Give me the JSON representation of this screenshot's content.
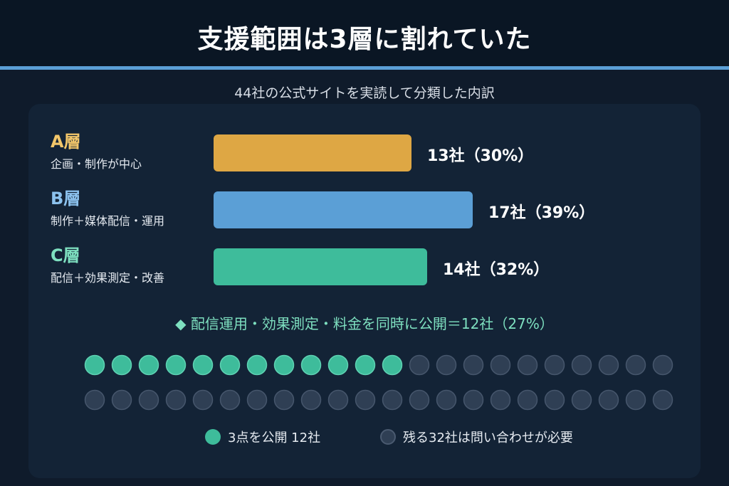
{
  "title": "支援範囲は3層に割れていた",
  "subtitle": "44社の公式サイトを実読して分類した内訳",
  "colors": {
    "tier_a": "#dea744",
    "tier_b": "#5b9fd6",
    "tier_c": "#3ebc9b",
    "dot_filled": "#3ebc9b",
    "dot_empty": "#2f3f54"
  },
  "chart_data": [
    {
      "type": "bar",
      "orientation": "horizontal",
      "categories": [
        "A層",
        "B層",
        "C層"
      ],
      "descriptions": [
        "企画・制作が中心",
        "制作＋媒体配信・運用",
        "配信＋効果測定・改善"
      ],
      "values": [
        13,
        17,
        14
      ],
      "percents": [
        30,
        39,
        32
      ],
      "value_labels": [
        "13社（30%）",
        "17社（39%）",
        "14社（32%）"
      ]
    },
    {
      "type": "dot-matrix",
      "total": 44,
      "filled": 12,
      "rows": 2,
      "columns": 22,
      "highlight_text": "配信運用・効果測定・料金を同時に公開＝12社（27%）",
      "highlight_marker": "◆",
      "legend": [
        "3点を公開 12社",
        "残る32社は問い合わせが必要"
      ]
    }
  ]
}
